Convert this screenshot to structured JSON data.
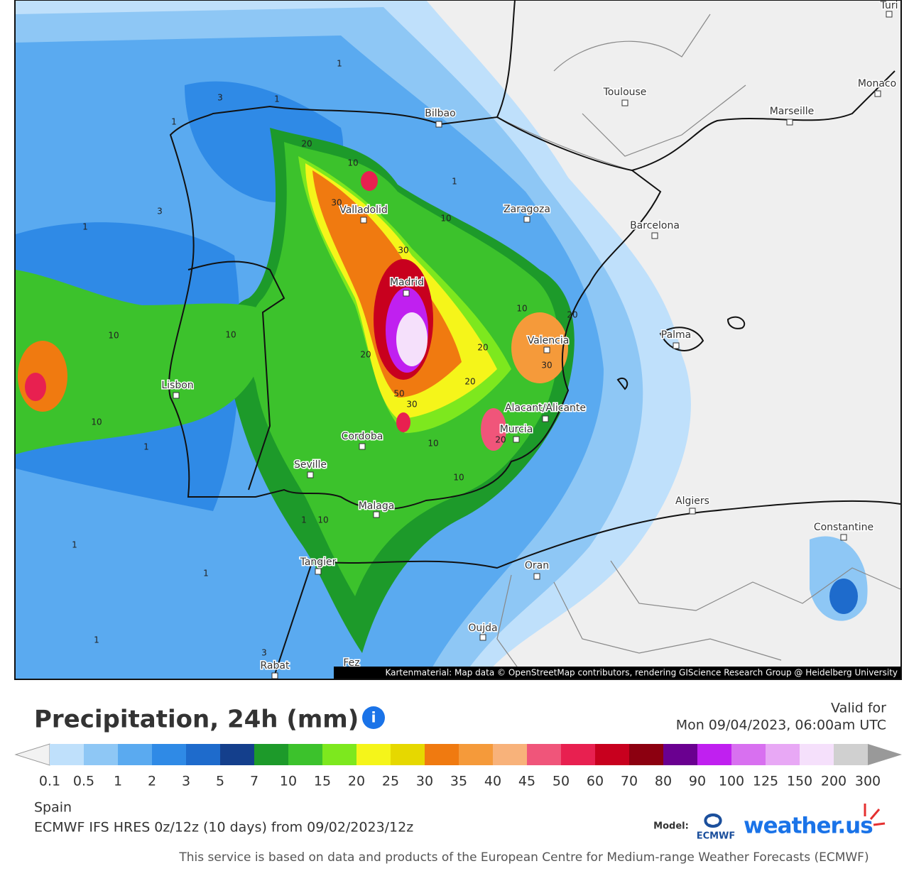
{
  "map": {
    "cities": [
      "Bilbao",
      "Toulouse",
      "Marseille",
      "Monaco",
      "Turi",
      "Zaragoza",
      "Barcelona",
      "Valladolid",
      "Madrid",
      "Valencia",
      "Palma",
      "Lisbon",
      "Alacant/Alicante",
      "Murcia",
      "Cordoba",
      "Seville",
      "Malaga",
      "Algiers",
      "Constantine",
      "Tangier",
      "Oran",
      "Oujda",
      "Rabat",
      "Fez"
    ],
    "contour_labels": [
      1,
      1,
      1,
      1,
      3,
      3,
      1,
      20,
      10,
      30,
      10,
      30,
      20,
      10,
      20,
      20,
      30,
      50,
      30,
      20,
      10,
      10,
      10,
      20,
      10,
      10,
      10,
      1,
      1,
      1,
      1,
      1,
      3
    ],
    "attribution": "Kartenmaterial: Map data © OpenStreetMap contributors, rendering GIScience Research Group @ Heidelberg University"
  },
  "header": {
    "title": "Precipitation, 24h (mm)",
    "info_icon": "i",
    "valid_label": "Valid for",
    "valid_time": "Mon 09/04/2023, 06:00am UTC"
  },
  "legend": {
    "labels": [
      0.1,
      0.5,
      1,
      2,
      3,
      5,
      7,
      10,
      15,
      20,
      25,
      30,
      35,
      40,
      45,
      50,
      60,
      70,
      80,
      90,
      100,
      125,
      150,
      200,
      300
    ],
    "colors": [
      "#bfe0fb",
      "#8ec7f5",
      "#5aaaf0",
      "#2f8ae6",
      "#1e6bcc",
      "#143f8c",
      "#1d9a2a",
      "#3cc22c",
      "#7de81e",
      "#f5f51a",
      "#e6d800",
      "#f07a10",
      "#f59a3a",
      "#f8b27a",
      "#f0557a",
      "#e82050",
      "#c8001e",
      "#8c0010",
      "#6a0090",
      "#c020f0",
      "#d870f0",
      "#e8a8f5",
      "#f5e0fb",
      "#d0d0d0"
    ]
  },
  "footer": {
    "region": "Spain",
    "model_run": "ECMWF IFS HRES 0z/12z (10 days) from 09/02/2023/12z",
    "model_label": "Model:",
    "ecmwf": "ECMWF",
    "brand": "weather.us",
    "notice": "This service is based on data and products of the European Centre for Medium-range Weather Forecasts (ECMWF)"
  }
}
